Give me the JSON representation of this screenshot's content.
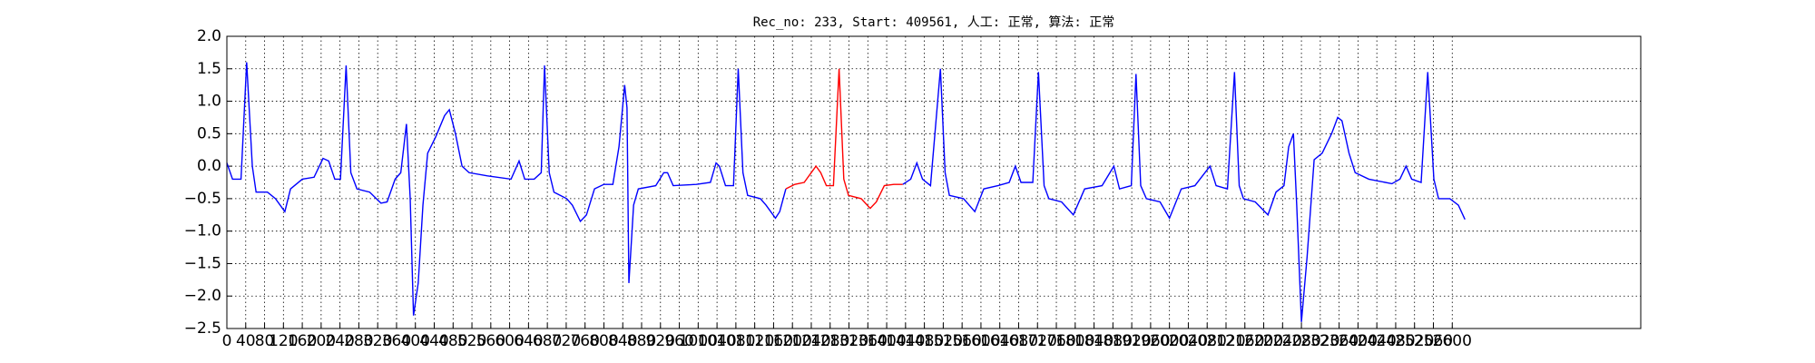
{
  "chart_data": {
    "type": "line",
    "title": "Rec_no: 233, Start: 409561, 人工: 正常, 算法: 正常",
    "x": [
      0,
      12,
      30,
      42,
      54,
      62,
      86,
      103,
      123,
      135,
      160,
      185,
      204,
      216,
      229,
      241,
      253,
      263,
      276,
      303,
      327,
      340,
      357,
      369,
      381,
      389,
      396,
      406,
      416,
      426,
      443,
      462,
      472,
      485,
      499,
      514,
      553,
      603,
      620,
      632,
      652,
      667,
      674,
      684,
      694,
      721,
      733,
      750,
      763,
      780,
      800,
      819,
      832,
      844,
      849,
      853,
      863,
      873,
      910,
      927,
      935,
      947,
      996,
      1026,
      1038,
      1045,
      1058,
      1075,
      1085,
      1095,
      1105,
      1132,
      1144,
      1164,
      1173,
      1186,
      1205,
      1225,
      1250,
      1260,
      1272,
      1287,
      1299,
      1309,
      1319,
      1346,
      1365,
      1378,
      1395,
      1415,
      1434,
      1451,
      1464,
      1476,
      1493,
      1514,
      1524,
      1533,
      1563,
      1587,
      1606,
      1636,
      1660,
      1673,
      1685,
      1710,
      1722,
      1734,
      1744,
      1771,
      1796,
      1820,
      1857,
      1882,
      1894,
      1919,
      1929,
      1939,
      1951,
      1980,
      2000,
      2025,
      2054,
      2086,
      2099,
      2123,
      2138,
      2148,
      2157,
      2182,
      2209,
      2226,
      2243,
      2253,
      2263,
      2270,
      2280,
      2292,
      2307,
      2324,
      2344,
      2357,
      2366,
      2381,
      2394,
      2423,
      2472,
      2489,
      2502,
      2514,
      2534,
      2548,
      2561,
      2571,
      2595,
      2613,
      2627
    ],
    "series": [
      {
        "color": "#0000ff",
        "values": [
          0.05,
          -0.2,
          -0.2,
          1.6,
          0.0,
          -0.4,
          -0.4,
          -0.5,
          -0.7,
          -0.35,
          -0.2,
          -0.17,
          0.12,
          0.08,
          -0.2,
          -0.2,
          1.55,
          -0.1,
          -0.35,
          -0.4,
          -0.57,
          -0.55,
          -0.2,
          -0.1,
          0.65,
          -0.5,
          -2.3,
          -1.8,
          -0.6,
          0.2,
          0.45,
          0.78,
          0.87,
          0.5,
          0.0,
          -0.1,
          -0.15,
          -0.2,
          0.08,
          -0.2,
          -0.2,
          -0.1,
          1.55,
          -0.1,
          -0.4,
          -0.5,
          -0.6,
          -0.85,
          -0.75,
          -0.35,
          -0.28,
          -0.28,
          0.3,
          1.25,
          0.9,
          -1.8,
          -0.6,
          -0.35,
          -0.3,
          -0.1,
          -0.1,
          -0.3,
          -0.28,
          -0.25,
          0.05,
          0.0,
          -0.3,
          -0.3,
          1.5,
          -0.1,
          -0.45,
          -0.5,
          -0.6,
          -0.8,
          -0.7,
          -0.35,
          null,
          null,
          null,
          null,
          null,
          null,
          null,
          null,
          null,
          null,
          null,
          null,
          null,
          null,
          -0.28,
          -0.2,
          0.05,
          -0.2,
          -0.3,
          1.5,
          -0.1,
          -0.45,
          -0.5,
          -0.7,
          -0.35,
          -0.3,
          -0.25,
          0.0,
          -0.25,
          -0.25,
          1.45,
          -0.3,
          -0.5,
          -0.55,
          -0.75,
          -0.35,
          -0.3,
          0.0,
          -0.35,
          -0.3,
          1.42,
          -0.3,
          -0.5,
          -0.55,
          -0.8,
          -0.35,
          -0.3,
          0.0,
          -0.3,
          -0.35,
          1.45,
          -0.3,
          -0.5,
          -0.55,
          -0.75,
          -0.4,
          -0.3,
          0.3,
          0.5,
          -0.6,
          -2.4,
          -1.4,
          0.1,
          0.2,
          0.5,
          0.75,
          0.7,
          0.2,
          -0.1,
          -0.2,
          -0.27,
          -0.2,
          0.0,
          -0.2,
          -0.25,
          1.45,
          -0.2,
          -0.5,
          -0.5,
          -0.6,
          -0.82
        ]
      },
      {
        "color": "#ff0000",
        "values": [
          null,
          null,
          null,
          null,
          null,
          null,
          null,
          null,
          null,
          null,
          null,
          null,
          null,
          null,
          null,
          null,
          null,
          null,
          null,
          null,
          null,
          null,
          null,
          null,
          null,
          null,
          null,
          null,
          null,
          null,
          null,
          null,
          null,
          null,
          null,
          null,
          null,
          null,
          null,
          null,
          null,
          null,
          null,
          null,
          null,
          null,
          null,
          null,
          null,
          null,
          null,
          null,
          null,
          null,
          null,
          null,
          null,
          null,
          null,
          null,
          null,
          null,
          null,
          null,
          null,
          null,
          null,
          null,
          null,
          null,
          null,
          null,
          null,
          null,
          null,
          -0.35,
          -0.28,
          -0.25,
          0.0,
          -0.1,
          -0.3,
          -0.3,
          1.5,
          -0.2,
          -0.45,
          -0.5,
          -0.65,
          -0.55,
          -0.3,
          -0.28,
          -0.28,
          null,
          null,
          null,
          null,
          null,
          null,
          null,
          null,
          null,
          null,
          null,
          null,
          null,
          null,
          null,
          null,
          null,
          null,
          null,
          null,
          null,
          null,
          null,
          null,
          null,
          null,
          null,
          null,
          null,
          null,
          null,
          null,
          null,
          null,
          null,
          null,
          null,
          null,
          null,
          null,
          null,
          null,
          null,
          null,
          null,
          null,
          null,
          null,
          null,
          null,
          null,
          null,
          null,
          null,
          null,
          null,
          null,
          null,
          null,
          null,
          null,
          null,
          null,
          null,
          null,
          null
        ]
      }
    ],
    "xlim": [
      0,
      3000
    ],
    "xticks": [
      0,
      40,
      80,
      120,
      160,
      200,
      240,
      280,
      320,
      360,
      400,
      440,
      480,
      520,
      560,
      600,
      640,
      680,
      720,
      760,
      800,
      840,
      880,
      920,
      960,
      1000,
      1040,
      1080,
      1120,
      1160,
      1200,
      1240,
      1280,
      1320,
      1360,
      1400,
      1440,
      1480,
      1520,
      1560,
      1600,
      1640,
      1680,
      1720,
      1760,
      1800,
      1840,
      1880,
      1920,
      1960,
      2000,
      2040,
      2080,
      2120,
      2160,
      2200,
      2240,
      2280,
      2320,
      2360,
      2400,
      2440,
      2480,
      2520,
      2560,
      2600
    ],
    "ylim": [
      -2.5,
      2.0
    ],
    "yticks": [
      {
        "value": -2.5,
        "label": "−2.5"
      },
      {
        "value": -2.0,
        "label": "−2.0"
      },
      {
        "value": -1.5,
        "label": "−1.5"
      },
      {
        "value": -1.0,
        "label": "−1.0"
      },
      {
        "value": -0.5,
        "label": "−0.5"
      },
      {
        "value": 0.0,
        "label": "0.0"
      },
      {
        "value": 0.5,
        "label": "0.5"
      },
      {
        "value": 1.0,
        "label": "1.0"
      },
      {
        "value": 1.5,
        "label": "1.5"
      },
      {
        "value": 2.0,
        "label": "2.0"
      }
    ],
    "grid": true
  }
}
